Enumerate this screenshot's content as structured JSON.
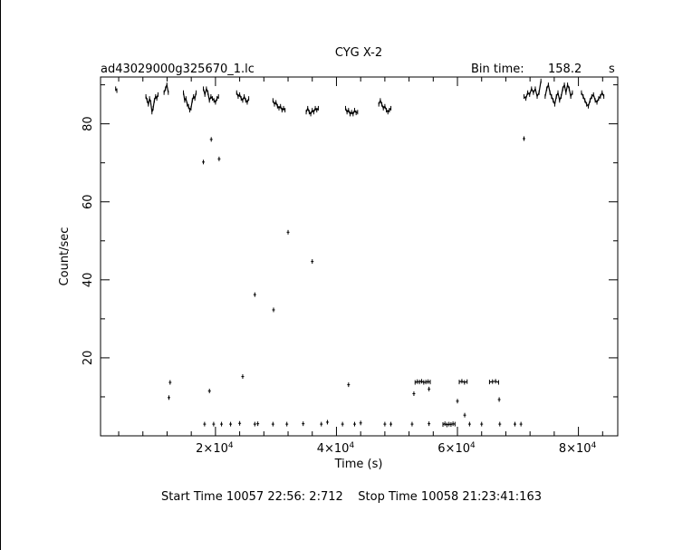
{
  "chart_data": {
    "type": "scatter",
    "title": "CYG X-2",
    "subtitle_left": "ad43029000g325670_1.lc",
    "bin_label": "Bin time:",
    "bin_value": "158.2",
    "bin_unit": "s",
    "xlabel": "Time (s)",
    "ylabel": "Count/sec",
    "xlim": [
      1000,
      86500
    ],
    "ylim": [
      0,
      92
    ],
    "xticks": [
      {
        "value": 20000,
        "mant": "2",
        "exp": "4"
      },
      {
        "value": 40000,
        "mant": "4",
        "exp": "4"
      },
      {
        "value": 60000,
        "mant": "6",
        "exp": "4"
      },
      {
        "value": 80000,
        "mant": "8",
        "exp": "4"
      }
    ],
    "yticks": [
      {
        "value": 20,
        "label": "20"
      },
      {
        "value": 40,
        "label": "40"
      },
      {
        "value": 60,
        "label": "60"
      },
      {
        "value": 80,
        "label": "80"
      }
    ],
    "segments": [
      {
        "x_start": 3500,
        "x_end": 3700,
        "y": [
          89,
          88.5
        ]
      },
      {
        "x_start": 8500,
        "x_end": 10500,
        "y": [
          87,
          86,
          85,
          86.5,
          85.5,
          83,
          84,
          86,
          87,
          86.5,
          87.5
        ]
      },
      {
        "x_start": 11500,
        "x_end": 12200,
        "y": [
          88,
          89,
          90,
          88
        ]
      },
      {
        "x_start": 14700,
        "x_end": 16800,
        "y": [
          88,
          86,
          86.5,
          85,
          84.5,
          83.5,
          84,
          86,
          87,
          86.5,
          88
        ]
      },
      {
        "x_start": 18000,
        "x_end": 20500,
        "y": [
          89,
          87.5,
          89,
          88,
          86,
          87,
          86.5,
          86,
          85.5,
          86.5,
          87
        ]
      },
      {
        "x_start": 23500,
        "x_end": 25500,
        "y": [
          88,
          87,
          87.5,
          86.5,
          86,
          87,
          86,
          85.5,
          86.5
        ]
      },
      {
        "x_start": 29500,
        "x_end": 31500,
        "y": [
          86,
          85,
          85.5,
          84.5,
          84,
          84.5,
          83.5,
          84,
          83.5
        ]
      },
      {
        "x_start": 35000,
        "x_end": 37000,
        "y": [
          83,
          84,
          83,
          82.5,
          83.5,
          83,
          84,
          83.5,
          84
        ]
      },
      {
        "x_start": 41500,
        "x_end": 43500,
        "y": [
          84,
          83,
          83.5,
          82.5,
          83,
          82.5,
          83.5,
          82.8,
          83
        ]
      },
      {
        "x_start": 47000,
        "x_end": 49000,
        "y": [
          85,
          86,
          85,
          84,
          84.5,
          83.5,
          83,
          83.5,
          84
        ]
      },
      {
        "x_start": 71000,
        "x_end": 73800,
        "y": [
          87,
          86.5,
          88,
          87.5,
          89,
          88,
          89,
          87,
          88,
          91
        ]
      },
      {
        "x_start": 74500,
        "x_end": 79000,
        "y": [
          87,
          89,
          90,
          88,
          87,
          86,
          85,
          87,
          88,
          86,
          87,
          89,
          90,
          88,
          90,
          89,
          87,
          88
        ]
      },
      {
        "x_start": 80500,
        "x_end": 84200,
        "y": [
          88,
          87,
          86,
          85,
          84.5,
          86,
          87,
          87.5,
          86,
          85.5,
          86.5,
          87,
          88,
          87
        ]
      },
      {
        "x_start": 53000,
        "x_end": 55500,
        "y": [
          13.7,
          13.9,
          13.8,
          14,
          13.7,
          13.8,
          13.9,
          13.8
        ]
      },
      {
        "x_start": 60300,
        "x_end": 61600,
        "y": [
          13.8,
          14,
          13.7,
          13.9
        ]
      },
      {
        "x_start": 65300,
        "x_end": 66800,
        "y": [
          13.8,
          13.9,
          14,
          13.7
        ]
      },
      {
        "x_start": 57600,
        "x_end": 59600,
        "y": [
          2.9,
          3.1,
          2.8,
          3,
          2.9,
          3.1,
          3
        ]
      }
    ],
    "points": [
      {
        "x": 18000,
        "y": 70.2
      },
      {
        "x": 19300,
        "y": 76
      },
      {
        "x": 20600,
        "y": 71
      },
      {
        "x": 71000,
        "y": 76.2
      },
      {
        "x": 32000,
        "y": 52.2
      },
      {
        "x": 36000,
        "y": 44.7
      },
      {
        "x": 26500,
        "y": 36.2
      },
      {
        "x": 29600,
        "y": 32.3
      },
      {
        "x": 24500,
        "y": 15.2
      },
      {
        "x": 12500,
        "y": 13.7
      },
      {
        "x": 12300,
        "y": 9.8
      },
      {
        "x": 19000,
        "y": 11.5
      },
      {
        "x": 42000,
        "y": 13.1
      },
      {
        "x": 52800,
        "y": 10.8
      },
      {
        "x": 55300,
        "y": 12
      },
      {
        "x": 60000,
        "y": 8.9
      },
      {
        "x": 61200,
        "y": 5.3
      },
      {
        "x": 66900,
        "y": 9.3
      },
      {
        "x": 18200,
        "y": 3
      },
      {
        "x": 19700,
        "y": 3
      },
      {
        "x": 21000,
        "y": 3
      },
      {
        "x": 22500,
        "y": 3
      },
      {
        "x": 24000,
        "y": 3.2
      },
      {
        "x": 26500,
        "y": 3
      },
      {
        "x": 27000,
        "y": 3.1
      },
      {
        "x": 29500,
        "y": 3
      },
      {
        "x": 31800,
        "y": 3
      },
      {
        "x": 34500,
        "y": 3.1
      },
      {
        "x": 37500,
        "y": 3
      },
      {
        "x": 38500,
        "y": 3.5
      },
      {
        "x": 41000,
        "y": 3
      },
      {
        "x": 43000,
        "y": 3
      },
      {
        "x": 44000,
        "y": 3.3
      },
      {
        "x": 48000,
        "y": 3
      },
      {
        "x": 49000,
        "y": 3
      },
      {
        "x": 52500,
        "y": 3
      },
      {
        "x": 55300,
        "y": 3.1
      },
      {
        "x": 62000,
        "y": 3
      },
      {
        "x": 64000,
        "y": 3
      },
      {
        "x": 67000,
        "y": 3
      },
      {
        "x": 69500,
        "y": 3
      },
      {
        "x": 70500,
        "y": 3
      }
    ]
  },
  "footer": {
    "start": "Start Time 10057 22:56: 2:712",
    "stop": "Stop Time 10058 21:23:41:163"
  }
}
